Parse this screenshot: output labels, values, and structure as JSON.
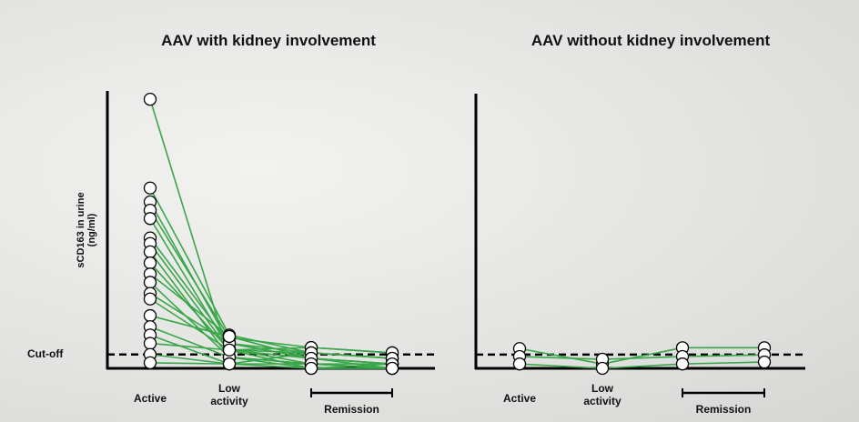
{
  "chart_data": [
    {
      "type": "line",
      "title": "AAV with kidney involvement",
      "y_label": "sCD163 in urine (ng/ml)",
      "categories": [
        "Active",
        "Low activity",
        "Remission",
        null
      ],
      "ylim": [
        0,
        100
      ],
      "cutoff": {
        "value": 5,
        "label": "Cut-off"
      },
      "line_color": "#3aa64a",
      "series": [
        {
          "values": [
            97,
            4,
            1.6,
            0
          ]
        },
        {
          "values": [
            65,
            12,
            5.6,
            3.6
          ]
        },
        {
          "values": [
            60,
            9,
            3.6,
            1.6
          ]
        },
        {
          "values": [
            57,
            11,
            7.5,
            5.6
          ]
        },
        {
          "values": [
            54,
            7,
            1.6,
            0
          ]
        },
        {
          "values": [
            47,
            9,
            3.6,
            1.6
          ]
        },
        {
          "values": [
            45,
            6.6,
            5.6,
            3.6
          ]
        },
        {
          "values": [
            42,
            4,
            0,
            0
          ]
        },
        {
          "values": [
            38,
            6.6,
            7.5,
            5.6
          ]
        },
        {
          "values": [
            34,
            11.5,
            3.6,
            1.6
          ]
        },
        {
          "values": [
            31,
            4,
            1.6,
            0
          ]
        },
        {
          "values": [
            27,
            9,
            5.6,
            3.6
          ]
        },
        {
          "values": [
            25,
            6.6,
            0,
            1.6
          ]
        },
        {
          "values": [
            19,
            11.5,
            3.6,
            0
          ]
        },
        {
          "values": [
            15,
            4,
            1.6,
            1.6
          ]
        },
        {
          "values": [
            12,
            1.6,
            5.6,
            3.6
          ]
        },
        {
          "values": [
            9,
            6.6,
            3.6,
            1.6
          ]
        },
        {
          "values": [
            5,
            1.6,
            1.6,
            0
          ]
        },
        {
          "values": [
            2,
            1.6,
            0,
            0
          ]
        }
      ]
    },
    {
      "type": "line",
      "title": "AAV without kidney involvement",
      "categories": [
        "Active",
        "Low activity",
        "Remission",
        null
      ],
      "ylim": [
        0,
        100
      ],
      "cutoff": 5,
      "line_color": "#3aa64a",
      "series": [
        {
          "values": [
            7.2,
            1.6,
            7.5,
            7.5
          ]
        },
        {
          "values": [
            4.3,
            3.3,
            4.3,
            4.9
          ]
        },
        {
          "values": [
            1.6,
            0,
            1.6,
            2.3
          ]
        }
      ]
    }
  ]
}
